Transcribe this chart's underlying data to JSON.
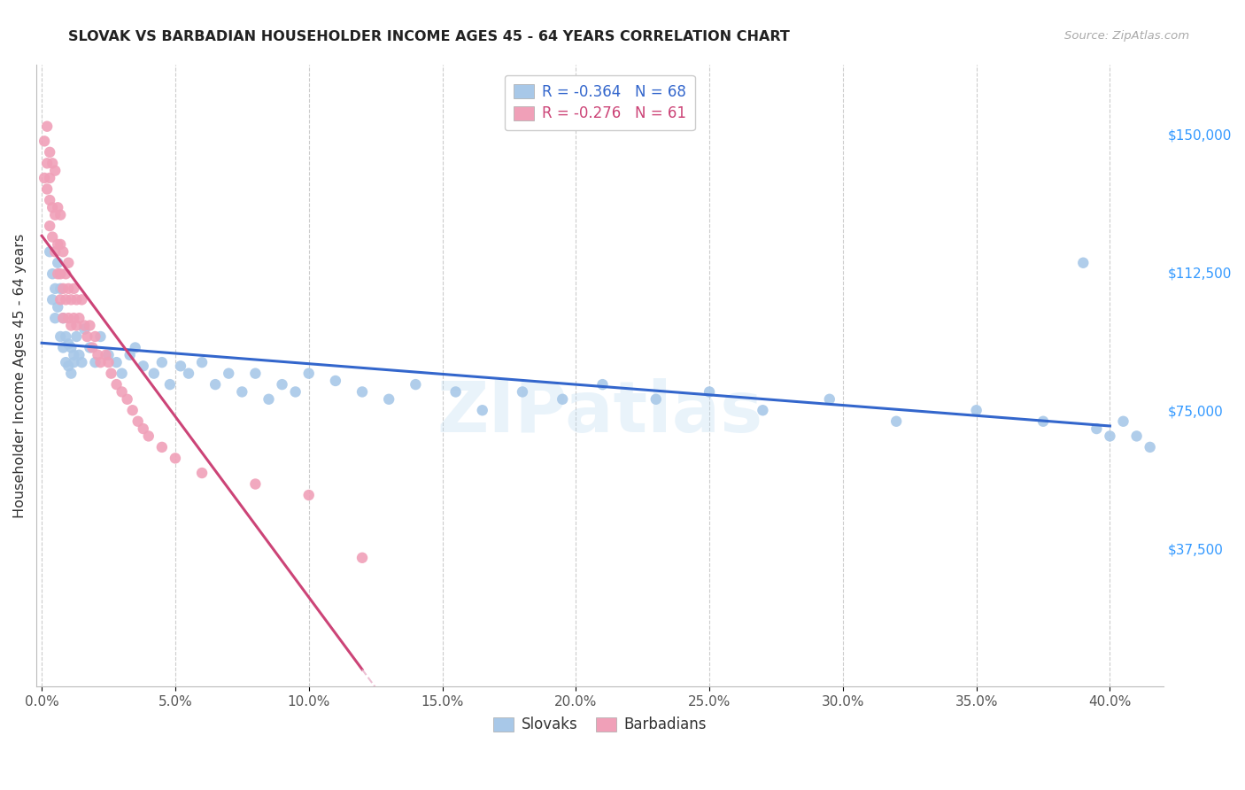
{
  "title": "SLOVAK VS BARBADIAN HOUSEHOLDER INCOME AGES 45 - 64 YEARS CORRELATION CHART",
  "source": "Source: ZipAtlas.com",
  "ylabel": "Householder Income Ages 45 - 64 years",
  "ytick_labels": [
    "$37,500",
    "$75,000",
    "$112,500",
    "$150,000"
  ],
  "ytick_vals": [
    37500,
    75000,
    112500,
    150000
  ],
  "ylim": [
    0,
    168750
  ],
  "xlim": [
    -0.002,
    0.42
  ],
  "xtick_vals": [
    0.0,
    0.05,
    0.1,
    0.15,
    0.2,
    0.25,
    0.3,
    0.35,
    0.4
  ],
  "xtick_labels": [
    "0.0%",
    "5.0%",
    "10.0%",
    "15.0%",
    "20.0%",
    "25.0%",
    "30.0%",
    "35.0%",
    "40.0%"
  ],
  "slovak_R": -0.364,
  "slovak_N": 68,
  "barbadian_R": -0.276,
  "barbadian_N": 61,
  "slovak_color": "#a8c8e8",
  "barbadian_color": "#f0a0b8",
  "slovak_line_color": "#3366cc",
  "barbadian_line_color": "#cc4477",
  "barbadian_dash_color": "#e8b0c8",
  "watermark": "ZIPatlas",
  "slovak_x": [
    0.003,
    0.004,
    0.004,
    0.005,
    0.005,
    0.006,
    0.006,
    0.007,
    0.007,
    0.008,
    0.008,
    0.009,
    0.009,
    0.01,
    0.01,
    0.011,
    0.011,
    0.012,
    0.012,
    0.013,
    0.014,
    0.015,
    0.016,
    0.018,
    0.02,
    0.022,
    0.025,
    0.028,
    0.03,
    0.033,
    0.035,
    0.038,
    0.042,
    0.045,
    0.048,
    0.052,
    0.055,
    0.06,
    0.065,
    0.07,
    0.075,
    0.08,
    0.085,
    0.09,
    0.095,
    0.1,
    0.11,
    0.12,
    0.13,
    0.14,
    0.155,
    0.165,
    0.18,
    0.195,
    0.21,
    0.23,
    0.25,
    0.27,
    0.295,
    0.32,
    0.35,
    0.375,
    0.395,
    0.4,
    0.405,
    0.41,
    0.415,
    0.39
  ],
  "slovak_y": [
    118000,
    112000,
    105000,
    108000,
    100000,
    103000,
    115000,
    95000,
    108000,
    92000,
    100000,
    95000,
    88000,
    93000,
    87000,
    92000,
    85000,
    90000,
    88000,
    95000,
    90000,
    88000,
    97000,
    92000,
    88000,
    95000,
    90000,
    88000,
    85000,
    90000,
    92000,
    87000,
    85000,
    88000,
    82000,
    87000,
    85000,
    88000,
    82000,
    85000,
    80000,
    85000,
    78000,
    82000,
    80000,
    85000,
    83000,
    80000,
    78000,
    82000,
    80000,
    75000,
    80000,
    78000,
    82000,
    78000,
    80000,
    75000,
    78000,
    72000,
    75000,
    72000,
    70000,
    68000,
    72000,
    68000,
    65000,
    115000
  ],
  "barbadian_x": [
    0.001,
    0.001,
    0.002,
    0.002,
    0.002,
    0.003,
    0.003,
    0.003,
    0.003,
    0.004,
    0.004,
    0.004,
    0.005,
    0.005,
    0.005,
    0.006,
    0.006,
    0.006,
    0.007,
    0.007,
    0.007,
    0.007,
    0.008,
    0.008,
    0.008,
    0.009,
    0.009,
    0.01,
    0.01,
    0.01,
    0.011,
    0.011,
    0.012,
    0.012,
    0.013,
    0.013,
    0.014,
    0.015,
    0.016,
    0.017,
    0.018,
    0.019,
    0.02,
    0.021,
    0.022,
    0.024,
    0.025,
    0.026,
    0.028,
    0.03,
    0.032,
    0.034,
    0.036,
    0.038,
    0.04,
    0.045,
    0.05,
    0.06,
    0.08,
    0.1,
    0.12
  ],
  "barbadian_y": [
    148000,
    138000,
    152000,
    142000,
    135000,
    145000,
    138000,
    132000,
    125000,
    142000,
    130000,
    122000,
    140000,
    128000,
    118000,
    130000,
    120000,
    112000,
    128000,
    120000,
    112000,
    105000,
    118000,
    108000,
    100000,
    112000,
    105000,
    115000,
    108000,
    100000,
    105000,
    98000,
    108000,
    100000,
    105000,
    98000,
    100000,
    105000,
    98000,
    95000,
    98000,
    92000,
    95000,
    90000,
    88000,
    90000,
    88000,
    85000,
    82000,
    80000,
    78000,
    75000,
    72000,
    70000,
    68000,
    65000,
    62000,
    58000,
    55000,
    52000,
    35000
  ]
}
